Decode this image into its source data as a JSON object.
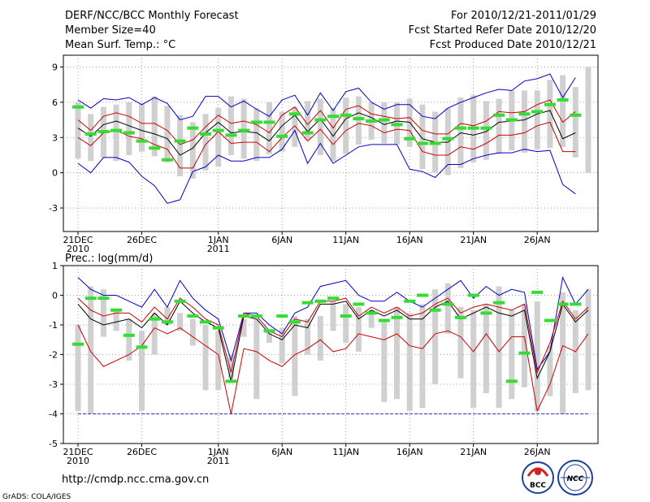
{
  "header": {
    "title": "DERF/NCC/BCC Monthly Forecast",
    "member_size": "Member Size=40",
    "variable": "Mean Surf. Temp.: °C",
    "period": "For 2010/12/21-2011/01/29",
    "fcst_started": "Fcst Started Refer Date 2010/12/20",
    "fcst_produced": "Fcst Produced Date 2010/12/21"
  },
  "footer": {
    "url": "http://cmdp.ncc.cma.gov.cn",
    "credit": "GrADS: COLA/IGES",
    "logo_bcc": "BCC",
    "logo_ncc": "NCC"
  },
  "colors": {
    "box": "#d0d0d0",
    "mean": "#33dd33",
    "envelope": "#0000cc",
    "spread": "#cc0000",
    "median": "#000000",
    "grid": "#888888",
    "baseline": "#3333cc"
  },
  "chart_data": [
    {
      "type": "box-line",
      "title": "",
      "ylabel": "Mean Surf. Temp. (°C)",
      "ylim": [
        -5,
        10
      ],
      "yticks": [
        -3,
        0,
        3,
        6,
        9
      ],
      "days": 40,
      "x_ticks": [
        {
          "day": 0,
          "label": "21DEC",
          "sub": "2010"
        },
        {
          "day": 5,
          "label": "26DEC",
          "sub": ""
        },
        {
          "day": 11,
          "label": "1JAN",
          "sub": "2011"
        },
        {
          "day": 16,
          "label": "6JAN",
          "sub": ""
        },
        {
          "day": 21,
          "label": "11JAN",
          "sub": ""
        },
        {
          "day": 26,
          "label": "16JAN",
          "sub": ""
        },
        {
          "day": 31,
          "label": "21JAN",
          "sub": ""
        },
        {
          "day": 36,
          "label": "26JAN",
          "sub": ""
        }
      ],
      "box_low": [
        1.2,
        1.0,
        1.3,
        1.0,
        1.5,
        1.8,
        1.4,
        0.9,
        -0.3,
        -0.5,
        0.2,
        0.5,
        1.5,
        1.2,
        1.0,
        1.6,
        1.8,
        2.2,
        2.8,
        1.5,
        1.0,
        1.6,
        2.4,
        2.8,
        2.5,
        2.4,
        2.2,
        0.3,
        0.0,
        -0.2,
        0.4,
        0.9,
        1.1,
        1.6,
        1.9,
        1.7,
        2.0,
        2.1,
        2.2,
        1.3,
        0.0
      ],
      "box_high": [
        6.0,
        5.0,
        5.6,
        5.8,
        6.0,
        5.9,
        6.5,
        5.7,
        4.9,
        4.3,
        5.0,
        5.5,
        6.5,
        6.3,
        5.5,
        6.0,
        5.2,
        5.6,
        6.1,
        6.3,
        5.5,
        6.4,
        6.5,
        6.0,
        6.0,
        6.0,
        6.3,
        5.8,
        5.2,
        5.5,
        6.4,
        6.6,
        6.1,
        6.3,
        7.0,
        7.0,
        7.0,
        7.9,
        8.3,
        7.3,
        9.0
      ],
      "series": [
        {
          "name": "ensemble max",
          "values": [
            6.2,
            5.5,
            6.3,
            6.2,
            6.4,
            5.8,
            6.4,
            5.9,
            4.5,
            4.8,
            6.5,
            6.5,
            5.6,
            6.1,
            5.4,
            4.8,
            6.2,
            6.6,
            4.9,
            6.8,
            5.3,
            6.9,
            7.2,
            6.0,
            5.4,
            5.8,
            5.8,
            4.8,
            4.6,
            5.5,
            6.0,
            6.4,
            6.8,
            7.1,
            7.0,
            7.8,
            8.0,
            8.4,
            6.4,
            8.1
          ]
        },
        {
          "name": "spread upper",
          "values": [
            4.5,
            3.6,
            4.8,
            5.1,
            4.8,
            4.2,
            4.2,
            3.6,
            2.4,
            2.8,
            3.9,
            4.9,
            4.2,
            4.4,
            4.1,
            3.4,
            4.9,
            5.6,
            4.1,
            5.3,
            3.8,
            5.4,
            5.7,
            5.0,
            4.8,
            4.6,
            4.7,
            3.6,
            3.3,
            3.3,
            4.2,
            4.0,
            4.4,
            5.2,
            5.1,
            5.2,
            5.8,
            6.2,
            4.3,
            5.2
          ]
        },
        {
          "name": "ensemble median",
          "values": [
            3.8,
            3.1,
            4.1,
            4.4,
            4.0,
            3.6,
            3.3,
            2.9,
            1.5,
            2.1,
            3.4,
            4.3,
            3.4,
            3.5,
            3.4,
            2.7,
            4.0,
            4.9,
            3.5,
            4.6,
            3.1,
            4.6,
            5.1,
            4.7,
            4.1,
            4.4,
            4.3,
            2.9,
            2.6,
            2.6,
            3.4,
            3.2,
            3.5,
            4.3,
            4.4,
            4.5,
            5.0,
            5.3,
            2.9,
            3.4
          ]
        },
        {
          "name": "spread lower",
          "values": [
            3.0,
            2.3,
            3.4,
            3.6,
            3.1,
            2.9,
            2.4,
            2.0,
            0.4,
            0.4,
            2.4,
            3.5,
            2.5,
            2.6,
            2.6,
            1.8,
            3.0,
            4.0,
            2.7,
            3.7,
            2.4,
            3.6,
            4.2,
            4.0,
            3.4,
            3.7,
            3.6,
            1.8,
            1.5,
            1.5,
            2.2,
            2.0,
            2.5,
            3.2,
            3.2,
            3.4,
            4.0,
            4.3,
            1.8,
            1.8
          ]
        },
        {
          "name": "ensemble min",
          "values": [
            0.8,
            0.0,
            1.3,
            1.3,
            0.9,
            -0.3,
            -1.1,
            -2.6,
            -2.3,
            0.1,
            0.5,
            1.5,
            1.0,
            1.0,
            1.3,
            1.3,
            2.0,
            3.6,
            0.8,
            2.5,
            0.8,
            1.5,
            2.2,
            2.4,
            2.4,
            2.4,
            0.3,
            0.1,
            -0.4,
            0.7,
            0.7,
            1.2,
            1.5,
            1.7,
            1.7,
            2.0,
            1.8,
            1.9,
            -1.0,
            -1.8
          ]
        }
      ],
      "ensemble_mean": [
        5.6,
        3.3,
        3.5,
        3.6,
        3.4,
        2.7,
        2.1,
        1.1,
        2.7,
        3.8,
        3.3,
        3.6,
        3.2,
        3.6,
        4.3,
        4.3,
        3.1,
        5.0,
        3.4,
        4.5,
        4.8,
        4.9,
        4.6,
        4.4,
        4.5,
        4.1,
        2.9,
        2.5,
        2.5,
        2.9,
        3.8,
        3.8,
        3.8,
        4.9,
        4.5,
        5.0,
        5.2,
        5.8,
        6.2,
        4.9
      ]
    },
    {
      "type": "box-line",
      "title": "Prec.: log(mm/d)",
      "ylabel": "Prec.: log(mm/d)",
      "ylim": [
        -5,
        1
      ],
      "yticks": [
        -5,
        -4,
        -3,
        -2,
        -1,
        0,
        1
      ],
      "days": 40,
      "baseline": -4,
      "x_ticks": [
        {
          "day": 0,
          "label": "21DEC",
          "sub": "2010"
        },
        {
          "day": 5,
          "label": "26DEC",
          "sub": ""
        },
        {
          "day": 11,
          "label": "1JAN",
          "sub": "2011"
        },
        {
          "day": 16,
          "label": "6JAN",
          "sub": ""
        },
        {
          "day": 21,
          "label": "11JAN",
          "sub": ""
        },
        {
          "day": 26,
          "label": "16JAN",
          "sub": ""
        },
        {
          "day": 31,
          "label": "21JAN",
          "sub": ""
        },
        {
          "day": 36,
          "label": "26JAN",
          "sub": ""
        }
      ],
      "box_low": [
        -3.9,
        -4.0,
        -1.4,
        -1.2,
        -2.2,
        -3.9,
        -2.0,
        -1.0,
        -1.2,
        -1.7,
        -3.2,
        -3.2,
        -2.8,
        -1.4,
        -3.5,
        -1.6,
        -2.3,
        -3.4,
        -2.0,
        -2.2,
        -1.2,
        -1.6,
        -1.9,
        -1.1,
        -3.6,
        -3.5,
        -3.9,
        -3.8,
        -3.0,
        -1.3,
        -2.8,
        -3.8,
        -3.3,
        -3.8,
        -3.5,
        -3.1,
        -3.9,
        -3.4,
        -4.0,
        -3.3,
        -3.2
      ],
      "box_high": [
        -1.0,
        0.3,
        0.2,
        -0.5,
        -0.8,
        -1.2,
        -0.6,
        -0.4,
        -0.6,
        -0.8,
        -1.0,
        -1.2,
        -2.0,
        -0.8,
        -0.8,
        -1.2,
        -1.1,
        -0.7,
        -0.8,
        -0.7,
        -0.2,
        -0.3,
        -0.4,
        -0.5,
        -0.8,
        -0.4,
        -0.6,
        -0.3,
        0.2,
        0.4,
        -0.4,
        -0.5,
        -0.3,
        0.3,
        -0.5,
        -0.3,
        -0.2,
        -1.7,
        0.1,
        -0.5,
        0.2
      ],
      "series": [
        {
          "name": "ensemble max",
          "values": [
            0.6,
            0.2,
            0.0,
            0.0,
            -0.2,
            -0.4,
            0.2,
            -0.4,
            0.5,
            -0.1,
            -0.5,
            -0.8,
            -2.2,
            -0.6,
            -0.6,
            -1.0,
            -1.3,
            -0.6,
            -0.4,
            0.3,
            0.4,
            0.5,
            0.0,
            -0.2,
            -0.2,
            0.1,
            -0.2,
            -0.4,
            -0.1,
            0.2,
            0.5,
            -0.1,
            0.3,
            0.0,
            0.2,
            0.1,
            -2.5,
            -1.9,
            0.6,
            -0.3,
            0.2
          ]
        },
        {
          "name": "spread upper",
          "values": [
            -0.1,
            -0.5,
            -0.7,
            -0.6,
            -0.6,
            -0.9,
            -0.4,
            -0.8,
            -0.1,
            -0.4,
            -0.8,
            -1.0,
            -2.6,
            -0.6,
            -0.7,
            -1.2,
            -1.4,
            -0.8,
            -0.9,
            -0.2,
            -0.2,
            -0.1,
            -0.7,
            -0.4,
            -0.6,
            -0.4,
            -0.7,
            -0.6,
            -0.3,
            -0.1,
            -0.6,
            -0.4,
            -0.3,
            -0.4,
            -0.5,
            -0.3,
            -2.6,
            -1.6,
            -0.2,
            -0.8,
            -0.4
          ]
        },
        {
          "name": "ensemble median",
          "values": [
            -0.3,
            -0.8,
            -1.0,
            -0.9,
            -0.8,
            -1.1,
            -0.6,
            -1.0,
            -0.2,
            -0.6,
            -0.9,
            -1.1,
            -2.9,
            -0.7,
            -0.8,
            -1.3,
            -1.5,
            -1.0,
            -1.1,
            -0.3,
            -0.3,
            -0.2,
            -0.8,
            -0.5,
            -0.7,
            -0.5,
            -0.8,
            -0.8,
            -0.4,
            -0.2,
            -0.8,
            -0.6,
            -0.4,
            -0.6,
            -0.7,
            -0.5,
            -2.8,
            -1.9,
            -0.3,
            -0.9,
            -0.5
          ]
        },
        {
          "name": "spread lower",
          "values": [
            -1.0,
            -1.9,
            -2.4,
            -2.2,
            -2.0,
            -1.7,
            -1.1,
            -1.3,
            -1.1,
            -1.4,
            -1.7,
            -2.0,
            -4.0,
            -1.8,
            -1.9,
            -2.2,
            -2.4,
            -2.0,
            -1.8,
            -1.5,
            -1.9,
            -1.8,
            -1.3,
            -1.4,
            -1.5,
            -1.3,
            -1.7,
            -1.8,
            -1.3,
            -1.2,
            -1.4,
            -1.9,
            -1.3,
            -1.9,
            -1.4,
            -1.4,
            -3.9,
            -3.0,
            -1.7,
            -1.9,
            -1.3
          ]
        }
      ],
      "ensemble_mean": [
        -1.65,
        -0.1,
        -0.1,
        -0.5,
        -1.35,
        -1.75,
        -0.8,
        -0.9,
        -0.2,
        -0.7,
        -0.9,
        -1.1,
        -2.9,
        -0.7,
        -0.7,
        -1.2,
        -0.7,
        -0.9,
        -0.25,
        -0.2,
        -0.1,
        -0.7,
        -0.3,
        -0.6,
        -0.85,
        -0.75,
        -0.2,
        0.0,
        -0.5,
        -0.3,
        -0.75,
        0.0,
        -0.6,
        -0.25,
        -2.9,
        -1.95,
        0.1,
        -0.85,
        -0.3,
        -0.3
      ]
    }
  ]
}
